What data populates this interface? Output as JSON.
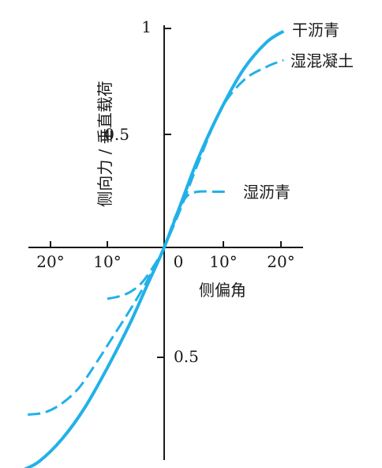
{
  "chart_data": {
    "type": "line",
    "ylabel": "侧向力 / 垂直载荷",
    "xlabel": "侧偏角",
    "x_tick_labels": [
      "20°",
      "10°",
      "0",
      "10°",
      "20°"
    ],
    "y_tick_labels": [
      "1",
      "0.5",
      "0.5"
    ],
    "xlim": [
      -25,
      25
    ],
    "ylim": [
      -1,
      1
    ],
    "grid": false,
    "line_color": "#21b1e8",
    "axis_color": "#1a1a1a",
    "series": [
      {
        "name": "干沥青",
        "style": "solid",
        "x": [
          -25,
          -22,
          -18,
          -14,
          -10,
          -6,
          -3,
          0,
          3,
          6,
          10,
          14,
          18,
          21
        ],
        "y": [
          -1.0,
          -0.96,
          -0.86,
          -0.72,
          -0.54,
          -0.34,
          -0.17,
          0.0,
          0.2,
          0.4,
          0.62,
          0.8,
          0.92,
          0.97
        ]
      },
      {
        "name": "湿混凝土",
        "style": "dashed",
        "x": [
          -24,
          -21,
          -18,
          -15,
          -12,
          -9,
          -6,
          -3,
          0,
          3,
          6,
          10,
          14,
          18,
          21
        ],
        "y": [
          -0.75,
          -0.74,
          -0.7,
          -0.63,
          -0.52,
          -0.4,
          -0.28,
          -0.15,
          0.0,
          0.18,
          0.38,
          0.62,
          0.75,
          0.81,
          0.84
        ]
      },
      {
        "name": "湿沥青",
        "style": "dashed",
        "x": [
          -10,
          -8,
          -6,
          -4,
          -2,
          0,
          2,
          4,
          6,
          9,
          11
        ],
        "y": [
          -0.23,
          -0.22,
          -0.2,
          -0.16,
          -0.09,
          0.0,
          0.14,
          0.23,
          0.25,
          0.25,
          0.25
        ]
      }
    ]
  }
}
